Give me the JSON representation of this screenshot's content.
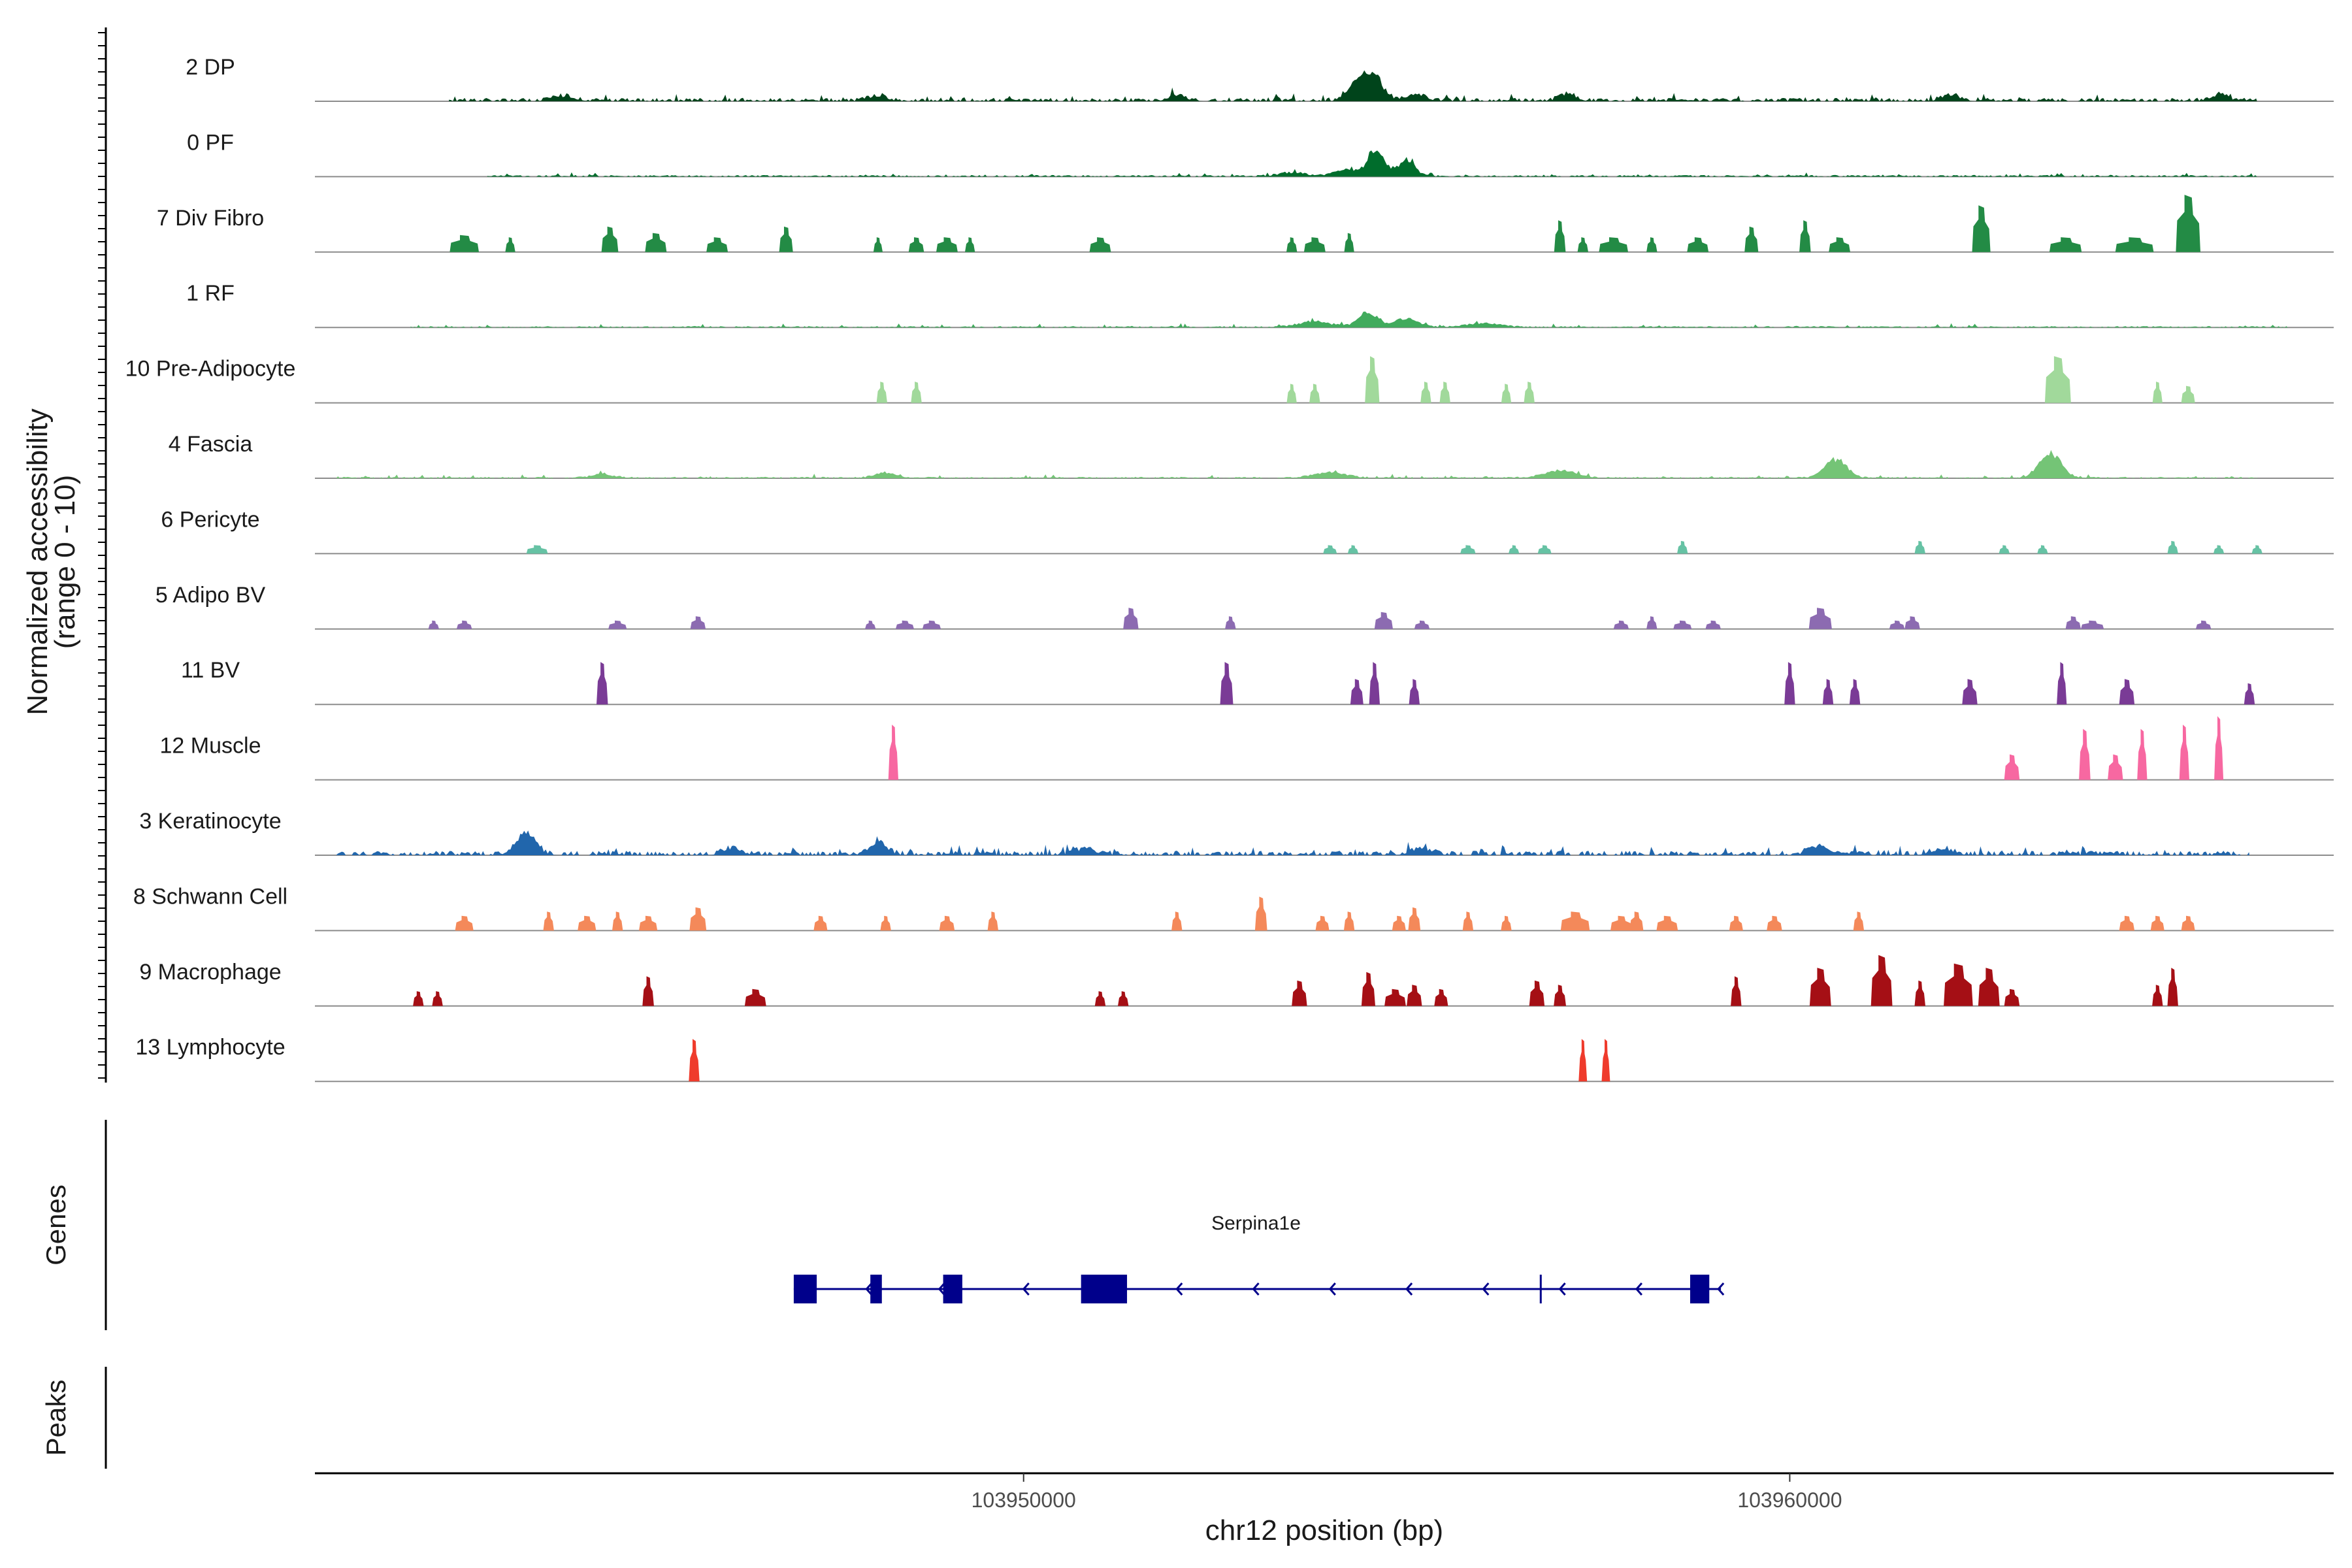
{
  "chart_data": {
    "type": "area",
    "title": "",
    "ylabel_line1": "Normalized accessibility",
    "ylabel_line2": "(range 0 - 10)",
    "ylim": [
      0,
      10
    ],
    "xlabel": "chr12 position (bp)",
    "xlim": [
      103940750,
      103967100
    ],
    "xticks": [
      103950000,
      103960000
    ],
    "xtick_labels": [
      "103950000",
      "103960000"
    ],
    "grid": false,
    "tracks": [
      {
        "name": "2 DP",
        "color": "#00441b",
        "mode": "cont",
        "range": [
          103942500,
          103966100
        ],
        "base": 0.6,
        "noise": 0.9,
        "peaks": [
          [
            103954540,
            7.5,
            180
          ],
          [
            103954300,
            3.5,
            140
          ],
          [
            103955100,
            1.6,
            200
          ],
          [
            103952000,
            1.6,
            150
          ],
          [
            103957100,
            1.6,
            160
          ],
          [
            103962100,
            1.5,
            160
          ],
          [
            103965600,
            1.6,
            160
          ],
          [
            103948100,
            1.4,
            150
          ],
          [
            103944000,
            1.2,
            200
          ]
        ]
      },
      {
        "name": "0 PF",
        "color": "#006d2c",
        "mode": "cont",
        "range": [
          103943000,
          103966100
        ],
        "base": 0.3,
        "noise": 0.5,
        "peaks": [
          [
            103954600,
            7.5,
            150
          ],
          [
            103955000,
            4.5,
            150
          ],
          [
            103954200,
            2.0,
            200
          ],
          [
            103953500,
            1.0,
            250
          ]
        ]
      },
      {
        "name": "7 Div Fibro",
        "color": "#238b45",
        "mode": "blocks",
        "peaks": [
          [
            103942700,
            4,
            380
          ],
          [
            103943300,
            3.5,
            130
          ],
          [
            103944600,
            6,
            220
          ],
          [
            103945200,
            4.5,
            280
          ],
          [
            103946000,
            3.5,
            280
          ],
          [
            103946900,
            6,
            180
          ],
          [
            103948100,
            3.5,
            120
          ],
          [
            103948600,
            3.5,
            200
          ],
          [
            103949000,
            3.5,
            280
          ],
          [
            103949300,
            3.5,
            130
          ],
          [
            103951000,
            3.5,
            280
          ],
          [
            103953500,
            3.5,
            140
          ],
          [
            103953800,
            3.5,
            280
          ],
          [
            103954250,
            4.5,
            130
          ],
          [
            103957000,
            7.5,
            150
          ],
          [
            103957300,
            3.5,
            140
          ],
          [
            103957700,
            3.5,
            380
          ],
          [
            103958200,
            3.5,
            140
          ],
          [
            103958800,
            3.5,
            280
          ],
          [
            103959500,
            6,
            180
          ],
          [
            103960200,
            7.5,
            150
          ],
          [
            103960650,
            3.5,
            280
          ],
          [
            103962500,
            11,
            240
          ],
          [
            103963600,
            3.5,
            420
          ],
          [
            103964500,
            3.5,
            500
          ],
          [
            103965200,
            13.5,
            320
          ]
        ]
      },
      {
        "name": "1 RF",
        "color": "#41ab5d",
        "mode": "cont",
        "range": [
          103942000,
          103966500
        ],
        "base": 0.25,
        "noise": 0.5,
        "peaks": [
          [
            103954500,
            4.0,
            180
          ],
          [
            103955000,
            2.4,
            200
          ],
          [
            103953800,
            1.5,
            300
          ],
          [
            103956000,
            1.0,
            300
          ]
        ]
      },
      {
        "name": "10 Pre-Adipocyte",
        "color": "#a1d99b",
        "mode": "blocks",
        "peaks": [
          [
            103948150,
            5,
            140
          ],
          [
            103948600,
            5,
            140
          ],
          [
            103953500,
            4.5,
            130
          ],
          [
            103953800,
            4.5,
            140
          ],
          [
            103954550,
            11,
            190
          ],
          [
            103955250,
            5,
            140
          ],
          [
            103955500,
            5,
            140
          ],
          [
            103956300,
            4.5,
            130
          ],
          [
            103956600,
            5,
            140
          ],
          [
            103963500,
            11,
            340
          ],
          [
            103964800,
            5,
            130
          ],
          [
            103965200,
            4,
            180
          ]
        ]
      },
      {
        "name": "4 Fascia",
        "color": "#74c476",
        "mode": "cont",
        "range": [
          103941000,
          103966100
        ],
        "base": 0.25,
        "noise": 0.5,
        "peaks": [
          [
            103963400,
            6.5,
            200
          ],
          [
            103960600,
            5.0,
            200
          ],
          [
            103957000,
            2.0,
            300
          ],
          [
            103954000,
            1.5,
            300
          ],
          [
            103948200,
            1.4,
            200
          ],
          [
            103944500,
            1.0,
            200
          ]
        ]
      },
      {
        "name": "6 Pericyte",
        "color": "#66c2a4",
        "mode": "blocks",
        "peaks": [
          [
            103943650,
            2,
            280
          ],
          [
            103954000,
            2,
            180
          ],
          [
            103954300,
            2,
            140
          ],
          [
            103955800,
            2,
            200
          ],
          [
            103956400,
            2,
            140
          ],
          [
            103956800,
            2,
            180
          ],
          [
            103958600,
            3,
            140
          ],
          [
            103961700,
            3,
            140
          ],
          [
            103962800,
            2,
            140
          ],
          [
            103963300,
            2,
            140
          ],
          [
            103965000,
            3,
            140
          ],
          [
            103965600,
            2,
            140
          ],
          [
            103966100,
            2,
            140
          ]
        ]
      },
      {
        "name": "5 Adipo BV",
        "color": "#8c6bb1",
        "mode": "blocks",
        "peaks": [
          [
            103942300,
            2,
            140
          ],
          [
            103942700,
            2,
            200
          ],
          [
            103944700,
            2,
            240
          ],
          [
            103945750,
            3,
            200
          ],
          [
            103948000,
            2,
            140
          ],
          [
            103948450,
            2,
            240
          ],
          [
            103948800,
            2,
            240
          ],
          [
            103951400,
            5,
            200
          ],
          [
            103952700,
            3,
            140
          ],
          [
            103954700,
            4,
            240
          ],
          [
            103955200,
            2,
            200
          ],
          [
            103957800,
            2,
            200
          ],
          [
            103958200,
            3,
            140
          ],
          [
            103958600,
            2,
            240
          ],
          [
            103959000,
            2,
            200
          ],
          [
            103960400,
            5,
            300
          ],
          [
            103961400,
            2,
            200
          ],
          [
            103961600,
            3,
            200
          ],
          [
            103963700,
            3,
            200
          ],
          [
            103963950,
            2,
            300
          ],
          [
            103965400,
            2,
            200
          ]
        ]
      },
      {
        "name": "11 BV",
        "color": "#7a3b96",
        "mode": "blocks",
        "peaks": [
          [
            103944500,
            10,
            150
          ],
          [
            103952650,
            10,
            170
          ],
          [
            103954350,
            6,
            170
          ],
          [
            103954580,
            10,
            140
          ],
          [
            103955100,
            6,
            140
          ],
          [
            103960000,
            10,
            140
          ],
          [
            103960500,
            6,
            140
          ],
          [
            103960850,
            6,
            140
          ],
          [
            103962350,
            6,
            200
          ],
          [
            103963550,
            10,
            130
          ],
          [
            103964400,
            6,
            200
          ],
          [
            103966000,
            5,
            140
          ]
        ]
      },
      {
        "name": "12 Muscle",
        "color": "#f768a1",
        "mode": "blocks",
        "peaks": [
          [
            103948300,
            13,
            130
          ],
          [
            103962900,
            6,
            200
          ],
          [
            103963850,
            12,
            150
          ],
          [
            103964250,
            6,
            200
          ],
          [
            103964600,
            12,
            130
          ],
          [
            103965150,
            13,
            130
          ],
          [
            103965600,
            15,
            120
          ]
        ]
      },
      {
        "name": "3 Keratinocyte",
        "color": "#2166ac",
        "mode": "cont",
        "range": [
          103941000,
          103966000
        ],
        "base": 0.8,
        "noise": 1.1,
        "peaks": [
          [
            103943500,
            5.5,
            180
          ],
          [
            103948100,
            3.0,
            160
          ],
          [
            103946200,
            1.8,
            160
          ],
          [
            103950800,
            1.5,
            200
          ],
          [
            103955200,
            1.5,
            200
          ],
          [
            103960400,
            2.0,
            200
          ],
          [
            103962000,
            1.5,
            200
          ]
        ]
      },
      {
        "name": "8 Schwann Cell",
        "color": "#f4895a",
        "mode": "blocks",
        "peaks": [
          [
            103942700,
            3.5,
            240
          ],
          [
            103943800,
            4.5,
            140
          ],
          [
            103944300,
            3.5,
            240
          ],
          [
            103944700,
            4.5,
            140
          ],
          [
            103945100,
            3.5,
            240
          ],
          [
            103945750,
            5.5,
            220
          ],
          [
            103947350,
            3.5,
            180
          ],
          [
            103948200,
            3.5,
            140
          ],
          [
            103949000,
            3.5,
            200
          ],
          [
            103949600,
            4.5,
            140
          ],
          [
            103952000,
            4.5,
            140
          ],
          [
            103953100,
            8,
            160
          ],
          [
            103953900,
            3.5,
            180
          ],
          [
            103954250,
            4.5,
            140
          ],
          [
            103954900,
            3.5,
            180
          ],
          [
            103955100,
            5.5,
            160
          ],
          [
            103955800,
            4.5,
            140
          ],
          [
            103956300,
            3.5,
            140
          ],
          [
            103957200,
            4.5,
            380
          ],
          [
            103957800,
            3.5,
            280
          ],
          [
            103958000,
            4.5,
            180
          ],
          [
            103958400,
            3.5,
            280
          ],
          [
            103959300,
            3.5,
            180
          ],
          [
            103959800,
            3.5,
            200
          ],
          [
            103960900,
            4.5,
            140
          ],
          [
            103964400,
            3.5,
            200
          ],
          [
            103964800,
            3.5,
            180
          ],
          [
            103965200,
            3.5,
            180
          ]
        ]
      },
      {
        "name": "9 Macrophage",
        "color": "#a50f15",
        "mode": "blocks",
        "peaks": [
          [
            103942100,
            3.5,
            140
          ],
          [
            103942350,
            3.5,
            140
          ],
          [
            103945100,
            7,
            150
          ],
          [
            103946500,
            4,
            280
          ],
          [
            103951000,
            3.5,
            140
          ],
          [
            103951300,
            3.5,
            140
          ],
          [
            103953600,
            6,
            200
          ],
          [
            103954500,
            8,
            180
          ],
          [
            103954850,
            4,
            280
          ],
          [
            103955100,
            5,
            200
          ],
          [
            103955450,
            4,
            180
          ],
          [
            103956700,
            6,
            200
          ],
          [
            103957000,
            5,
            160
          ],
          [
            103959300,
            7,
            140
          ],
          [
            103960400,
            9,
            280
          ],
          [
            103961200,
            12,
            280
          ],
          [
            103961700,
            6,
            140
          ],
          [
            103962200,
            10,
            380
          ],
          [
            103962600,
            9,
            280
          ],
          [
            103962900,
            4,
            200
          ],
          [
            103964800,
            5,
            140
          ],
          [
            103965000,
            9,
            140
          ]
        ]
      },
      {
        "name": "13 Lymphocyte",
        "color": "#ef3b2c",
        "mode": "blocks",
        "peaks": [
          [
            103945700,
            10,
            140
          ],
          [
            103957300,
            10,
            110
          ],
          [
            103957600,
            10,
            110
          ]
        ]
      }
    ],
    "gene": {
      "name": "Serpina1e",
      "start": 103947000,
      "end": 103959000,
      "exons": [
        [
          103947000,
          103947300
        ],
        [
          103948000,
          103948150
        ],
        [
          103948950,
          103949200
        ],
        [
          103950750,
          103951350
        ],
        [
          103958700,
          103958950
        ]
      ],
      "strand_arrows": [
        103947950,
        103948900,
        103950000,
        103952000,
        103953000,
        103954000,
        103955000,
        103956000,
        103957000,
        103958000
      ],
      "tick": 103956750,
      "color": "#00008b"
    },
    "panels": {
      "genes": "Genes",
      "peaks": "Peaks"
    }
  }
}
